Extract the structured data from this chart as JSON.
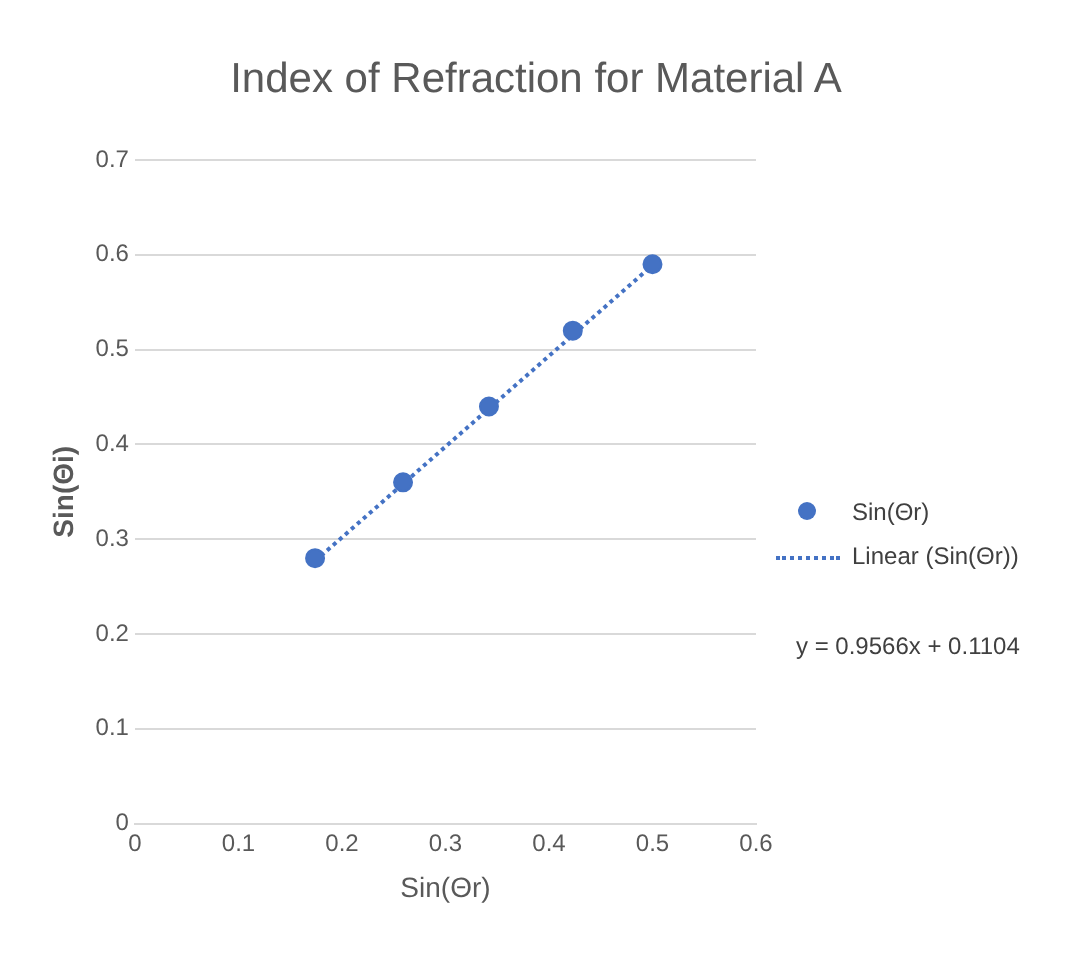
{
  "chart_data": {
    "type": "scatter",
    "title": "Index of Refraction for Material A",
    "xlabel": "Sin(Θr)",
    "ylabel": "Sin(Θi)",
    "xlim": [
      0,
      0.6
    ],
    "xticks": [
      0,
      0.1,
      0.2,
      0.3,
      0.4,
      0.5,
      0.6
    ],
    "ylim": [
      0,
      0.7
    ],
    "yticks": [
      0,
      0.1,
      0.2,
      0.3,
      0.4,
      0.5,
      0.6,
      0.7
    ],
    "grid": "y",
    "legend": "right",
    "series": [
      {
        "name": "Sin(Θr)",
        "type": "scatter",
        "marker": "circle",
        "color": "#4472c4",
        "x": [
          0.174,
          0.259,
          0.342,
          0.423,
          0.5
        ],
        "values": [
          0.28,
          0.36,
          0.44,
          0.52,
          0.59
        ]
      },
      {
        "name": "Linear (Sin(Θr))",
        "type": "line",
        "marker": "none",
        "line_style": "dotted",
        "color": "#4472c4",
        "x": [
          0.174,
          0.5
        ],
        "values": [
          0.277,
          0.589
        ]
      }
    ],
    "annotations": [
      "y = 0.9566x + 0.1104"
    ]
  }
}
